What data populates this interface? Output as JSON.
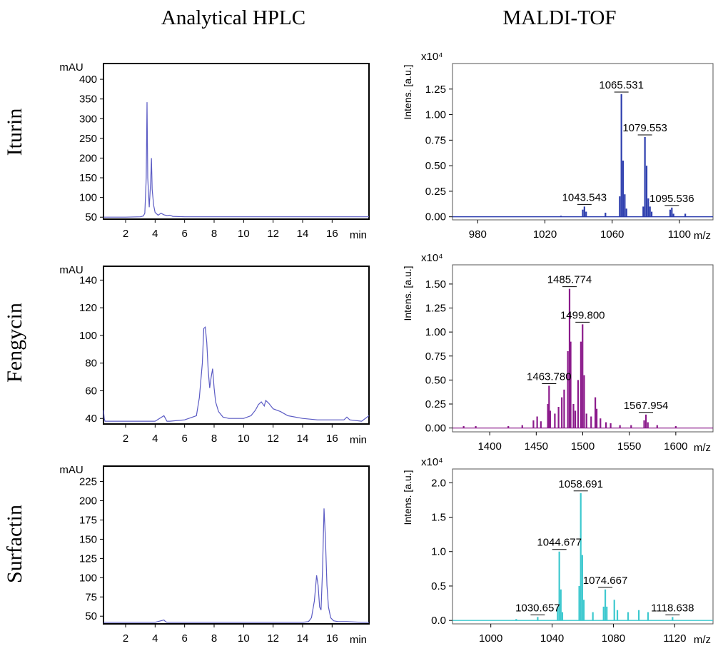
{
  "figure": {
    "col_titles": [
      "Analytical HPLC",
      "MALDI-TOF"
    ],
    "row_titles": [
      "Iturin",
      "Fengycin",
      "Surfactin"
    ]
  },
  "chart_data": [
    {
      "type": "line",
      "name": "hplc-iturin",
      "ylabel": "mAU",
      "xunit": "min",
      "xlim": [
        0.5,
        18.5
      ],
      "ylim": [
        45,
        440
      ],
      "x_ticks": [
        2,
        4,
        6,
        8,
        10,
        12,
        14,
        16
      ],
      "y_ticks": [
        50,
        100,
        150,
        200,
        250,
        300,
        350,
        400
      ],
      "color": "#5b5bc4",
      "series": [
        {
          "x": [
            0.5,
            2.0,
            3.0,
            3.2,
            3.3,
            3.4,
            3.45,
            3.5,
            3.6,
            3.7,
            3.75,
            3.8,
            3.9,
            4.0,
            4.2,
            4.4,
            4.6,
            4.8,
            5.0,
            5.2,
            6.0,
            8.0,
            10.0,
            12.0,
            14.0,
            16.0,
            17.0,
            18.5
          ],
          "y": [
            50,
            50,
            51,
            53,
            60,
            150,
            342,
            150,
            75,
            140,
            200,
            120,
            80,
            62,
            55,
            60,
            56,
            54,
            55,
            52,
            51,
            51,
            51,
            51,
            51,
            51,
            51,
            51
          ]
        }
      ]
    },
    {
      "type": "bar",
      "name": "maldi-iturin",
      "ylabel": "Intens. [a.u.]",
      "y_exponent": "x10⁴",
      "xunit": "m/z",
      "xlim": [
        965,
        1120
      ],
      "ylim": [
        -0.03,
        1.5
      ],
      "x_ticks": [
        980,
        1020,
        1060,
        1100
      ],
      "y_ticks": [
        "0.00",
        "0.25",
        "0.50",
        "0.75",
        "1.00",
        "1.25"
      ],
      "color": "#2e3fae",
      "peaks": [
        {
          "x": 1029.5,
          "y": 0.01
        },
        {
          "x": 1042.5,
          "y": 0.07
        },
        {
          "x": 1043.5,
          "y": 0.1
        },
        {
          "x": 1044.5,
          "y": 0.05
        },
        {
          "x": 1056,
          "y": 0.04
        },
        {
          "x": 1064.5,
          "y": 0.2
        },
        {
          "x": 1065.5,
          "y": 1.2
        },
        {
          "x": 1066.5,
          "y": 0.55
        },
        {
          "x": 1067.5,
          "y": 0.22
        },
        {
          "x": 1068.5,
          "y": 0.08
        },
        {
          "x": 1078.5,
          "y": 0.1
        },
        {
          "x": 1079.5,
          "y": 0.78
        },
        {
          "x": 1080.5,
          "y": 0.5
        },
        {
          "x": 1081.5,
          "y": 0.18
        },
        {
          "x": 1082.5,
          "y": 0.1
        },
        {
          "x": 1083.5,
          "y": 0.05
        },
        {
          "x": 1094.5,
          "y": 0.07
        },
        {
          "x": 1095.5,
          "y": 0.09
        },
        {
          "x": 1096.5,
          "y": 0.03
        },
        {
          "x": 1103.5,
          "y": 0.03
        }
      ],
      "annotations": [
        {
          "label": "1065.531",
          "x": 1065.5,
          "y": 1.2
        },
        {
          "label": "1079.553",
          "x": 1079.5,
          "y": 0.78
        },
        {
          "label": "1043.543",
          "x": 1043.5,
          "y": 0.1
        },
        {
          "label": "1095.536",
          "x": 1095.5,
          "y": 0.09
        }
      ]
    },
    {
      "type": "line",
      "name": "hplc-fengycin",
      "ylabel": "mAU",
      "xunit": "min",
      "xlim": [
        0.5,
        18.5
      ],
      "ylim": [
        36,
        150
      ],
      "x_ticks": [
        2,
        4,
        6,
        8,
        10,
        12,
        14,
        16
      ],
      "y_ticks": [
        40,
        60,
        80,
        100,
        120,
        140
      ],
      "color": "#5b5bc4",
      "series": [
        {
          "x": [
            0.5,
            0.55,
            0.6,
            0.7,
            2.0,
            4.0,
            4.6,
            4.7,
            4.8,
            5.0,
            6.0,
            6.8,
            7.0,
            7.2,
            7.3,
            7.4,
            7.5,
            7.6,
            7.7,
            7.8,
            7.9,
            8.0,
            8.1,
            8.3,
            8.6,
            9.0,
            9.5,
            10.0,
            10.5,
            10.8,
            11.0,
            11.2,
            11.4,
            11.5,
            11.7,
            12.0,
            12.5,
            13.0,
            14.0,
            15.0,
            16.0,
            16.8,
            17.0,
            17.2,
            18.0,
            18.5
          ],
          "y": [
            46,
            40,
            38,
            38,
            38,
            38,
            42,
            40,
            38,
            38,
            39,
            42,
            55,
            80,
            105,
            106,
            95,
            75,
            62,
            70,
            76,
            62,
            52,
            45,
            41,
            40,
            40,
            40,
            42,
            46,
            50,
            52,
            49,
            53,
            51,
            47,
            45,
            42,
            40,
            39,
            39,
            39,
            41,
            39,
            38,
            42
          ]
        }
      ]
    },
    {
      "type": "bar",
      "name": "maldi-fengycin",
      "ylabel": "Intens. [a.u.]",
      "y_exponent": "x10⁴",
      "xunit": "m/z",
      "xlim": [
        1360,
        1640
      ],
      "ylim": [
        -0.04,
        1.7
      ],
      "x_ticks": [
        1400,
        1450,
        1500,
        1550,
        1600
      ],
      "y_ticks": [
        "0.00",
        "0.25",
        "0.50",
        "0.75",
        "1.00",
        "1.25",
        "1.50"
      ],
      "color": "#8b1a8b",
      "peaks": [
        {
          "x": 1372,
          "y": 0.02
        },
        {
          "x": 1385,
          "y": 0.02
        },
        {
          "x": 1420,
          "y": 0.02
        },
        {
          "x": 1435,
          "y": 0.03
        },
        {
          "x": 1447,
          "y": 0.08
        },
        {
          "x": 1451,
          "y": 0.12
        },
        {
          "x": 1455,
          "y": 0.07
        },
        {
          "x": 1462.5,
          "y": 0.25
        },
        {
          "x": 1463.8,
          "y": 0.44
        },
        {
          "x": 1465,
          "y": 0.18
        },
        {
          "x": 1470,
          "y": 0.15
        },
        {
          "x": 1474,
          "y": 0.22
        },
        {
          "x": 1477.5,
          "y": 0.32
        },
        {
          "x": 1480,
          "y": 0.4
        },
        {
          "x": 1484,
          "y": 0.8
        },
        {
          "x": 1485.8,
          "y": 1.45
        },
        {
          "x": 1487,
          "y": 0.9
        },
        {
          "x": 1490,
          "y": 0.25
        },
        {
          "x": 1492,
          "y": 0.18
        },
        {
          "x": 1495,
          "y": 0.5
        },
        {
          "x": 1498,
          "y": 0.9
        },
        {
          "x": 1499.8,
          "y": 1.08
        },
        {
          "x": 1501.5,
          "y": 0.55
        },
        {
          "x": 1504,
          "y": 0.15
        },
        {
          "x": 1509,
          "y": 0.12
        },
        {
          "x": 1513.5,
          "y": 0.32
        },
        {
          "x": 1515,
          "y": 0.2
        },
        {
          "x": 1519,
          "y": 0.1
        },
        {
          "x": 1525,
          "y": 0.06
        },
        {
          "x": 1530,
          "y": 0.05
        },
        {
          "x": 1540,
          "y": 0.03
        },
        {
          "x": 1552,
          "y": 0.03
        },
        {
          "x": 1566,
          "y": 0.08
        },
        {
          "x": 1567.9,
          "y": 0.14
        },
        {
          "x": 1570,
          "y": 0.06
        },
        {
          "x": 1580,
          "y": 0.03
        },
        {
          "x": 1600,
          "y": 0.02
        }
      ],
      "annotations": [
        {
          "label": "1485.774",
          "x": 1485.8,
          "y": 1.45
        },
        {
          "label": "1499.800",
          "x": 1499.8,
          "y": 1.08
        },
        {
          "label": "1463.780",
          "x": 1463.8,
          "y": 0.44
        },
        {
          "label": "1567.954",
          "x": 1567.9,
          "y": 0.14
        }
      ]
    },
    {
      "type": "line",
      "name": "hplc-surfactin",
      "ylabel": "mAU",
      "xunit": "min",
      "xlim": [
        0.5,
        18.5
      ],
      "ylim": [
        40,
        245
      ],
      "x_ticks": [
        2,
        4,
        6,
        8,
        10,
        12,
        14,
        16
      ],
      "y_ticks": [
        50,
        75,
        100,
        125,
        150,
        175,
        200,
        225
      ],
      "color": "#5b5bc4",
      "series": [
        {
          "x": [
            0.5,
            2.0,
            4.0,
            4.6,
            4.7,
            4.8,
            6.0,
            8.0,
            10.0,
            12.0,
            14.0,
            14.4,
            14.6,
            14.8,
            14.95,
            15.05,
            15.15,
            15.25,
            15.35,
            15.45,
            15.55,
            15.65,
            15.75,
            15.9,
            16.1,
            16.4,
            17.0,
            18.0,
            18.5
          ],
          "y": [
            42,
            42,
            42,
            45,
            43,
            42,
            42,
            42,
            42,
            42,
            42,
            43,
            48,
            70,
            103,
            90,
            62,
            58,
            110,
            190,
            150,
            90,
            62,
            48,
            44,
            43,
            43,
            42,
            42
          ]
        }
      ]
    },
    {
      "type": "bar",
      "name": "maldi-surfactin",
      "ylabel": "Intens. [a.u.]",
      "y_exponent": "x10⁴",
      "xunit": "m/z",
      "xlim": [
        975,
        1145
      ],
      "ylim": [
        -0.05,
        2.2
      ],
      "x_ticks": [
        1000,
        1040,
        1080,
        1120
      ],
      "y_ticks": [
        "0.0",
        "0.5",
        "1.0",
        "1.5",
        "2.0"
      ],
      "color": "#3ec9cf",
      "peaks": [
        {
          "x": 1016.6,
          "y": 0.02
        },
        {
          "x": 1030.6,
          "y": 0.05
        },
        {
          "x": 1043.6,
          "y": 0.2
        },
        {
          "x": 1044.7,
          "y": 1.0
        },
        {
          "x": 1045.7,
          "y": 0.45
        },
        {
          "x": 1046.7,
          "y": 0.12
        },
        {
          "x": 1057.7,
          "y": 0.5
        },
        {
          "x": 1058.7,
          "y": 1.85
        },
        {
          "x": 1059.7,
          "y": 0.95
        },
        {
          "x": 1060.7,
          "y": 0.3
        },
        {
          "x": 1066.6,
          "y": 0.12
        },
        {
          "x": 1073.6,
          "y": 0.2
        },
        {
          "x": 1074.7,
          "y": 0.45
        },
        {
          "x": 1075.7,
          "y": 0.2
        },
        {
          "x": 1080.6,
          "y": 0.3
        },
        {
          "x": 1082.6,
          "y": 0.15
        },
        {
          "x": 1089.6,
          "y": 0.12
        },
        {
          "x": 1096.6,
          "y": 0.15
        },
        {
          "x": 1102.6,
          "y": 0.12
        },
        {
          "x": 1118.6,
          "y": 0.05
        }
      ],
      "annotations": [
        {
          "label": "1058.691",
          "x": 1058.7,
          "y": 1.85
        },
        {
          "label": "1044.677",
          "x": 1044.7,
          "y": 1.0
        },
        {
          "label": "1074.667",
          "x": 1074.7,
          "y": 0.45
        },
        {
          "label": "1030.657",
          "x": 1030.6,
          "y": 0.05
        },
        {
          "label": "1118.638",
          "x": 1118.6,
          "y": 0.05
        }
      ]
    }
  ]
}
